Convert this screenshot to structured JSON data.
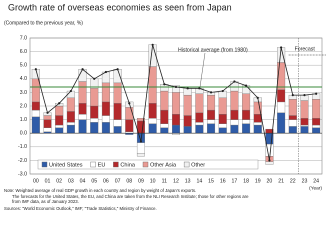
{
  "chart_data": {
    "type": "stacked-bar-line",
    "title": "Growth rate of overseas economies as seen from Japan",
    "subtitle": "(Compared to the previous year, %)",
    "x_label": "(Year)",
    "categories": [
      "00",
      "01",
      "02",
      "03",
      "04",
      "05",
      "06",
      "07",
      "08",
      "09",
      "10",
      "11",
      "12",
      "13",
      "14",
      "15",
      "16",
      "17",
      "18",
      "19",
      "20",
      "21",
      "22",
      "23",
      "24"
    ],
    "series": [
      {
        "name": "United States",
        "color": "#2f5ca8",
        "values": [
          1.2,
          0.1,
          0.4,
          0.6,
          1.0,
          0.8,
          0.8,
          0.5,
          -0.1,
          -0.7,
          0.7,
          0.4,
          0.6,
          0.5,
          0.6,
          0.7,
          0.4,
          0.6,
          0.7,
          0.6,
          -0.8,
          1.5,
          0.5,
          0.5,
          0.4
        ]
      },
      {
        "name": "EU",
        "color": "#ffffff",
        "values": [
          0.5,
          0.3,
          0.2,
          0.2,
          0.4,
          0.3,
          0.5,
          0.5,
          0.1,
          -0.8,
          0.4,
          0.3,
          -0.1,
          0.0,
          0.2,
          0.3,
          0.3,
          0.4,
          0.3,
          0.2,
          -0.9,
          0.8,
          0.5,
          0.1,
          0.2
        ]
      },
      {
        "name": "China",
        "color": "#b3292c",
        "values": [
          0.6,
          0.6,
          0.7,
          0.8,
          0.8,
          0.9,
          1.0,
          1.2,
          0.9,
          0.9,
          1.1,
          1.0,
          0.8,
          0.8,
          0.7,
          0.7,
          0.7,
          0.7,
          0.7,
          0.6,
          0.3,
          0.9,
          0.3,
          0.5,
          0.5
        ]
      },
      {
        "name": "Other Asia",
        "color": "#e99a93",
        "values": [
          1.7,
          0.3,
          0.7,
          1.0,
          1.6,
          1.3,
          1.4,
          1.5,
          0.9,
          0.2,
          2.7,
          1.4,
          1.6,
          1.5,
          1.4,
          1.1,
          1.2,
          1.4,
          1.2,
          0.9,
          -0.4,
          2.0,
          1.2,
          1.3,
          1.4
        ]
      },
      {
        "name": "Other",
        "color": "#f1f1f1",
        "values": [
          0.7,
          0.2,
          0.2,
          0.5,
          0.9,
          0.7,
          0.8,
          1.0,
          0.4,
          -0.2,
          1.6,
          0.5,
          0.5,
          0.5,
          0.4,
          0.2,
          0.5,
          0.7,
          0.6,
          0.3,
          -0.2,
          1.1,
          0.3,
          0.4,
          0.4
        ]
      }
    ],
    "line_values": [
      4.7,
      1.5,
      2.2,
      3.1,
      4.7,
      4.0,
      4.5,
      4.7,
      2.2,
      -0.6,
      6.5,
      3.6,
      3.4,
      3.3,
      3.3,
      3.0,
      3.1,
      3.8,
      3.5,
      2.6,
      -2.0,
      6.3,
      2.8,
      2.8,
      2.9
    ],
    "line_color": "#222222",
    "average": {
      "label": "Historical average (from 1980)",
      "value": 3.4,
      "color": "#3a8a3a"
    },
    "forecast_label": "Forecast",
    "ylim": [
      -3,
      7
    ],
    "yticks": [
      {
        "value": 7,
        "label": "7.0"
      },
      {
        "value": 6,
        "label": "6.0"
      },
      {
        "value": 5,
        "label": "5.0"
      },
      {
        "value": 4,
        "label": "4.0"
      },
      {
        "value": 3,
        "label": "3.0"
      },
      {
        "value": 2,
        "label": "2.0"
      },
      {
        "value": 1,
        "label": "1.0"
      },
      {
        "value": 0,
        "label": "0.0"
      },
      {
        "value": -1,
        "label": "-1.0"
      },
      {
        "value": -2,
        "label": "-2.0"
      },
      {
        "value": -3,
        "label": "-3.0"
      }
    ],
    "grid": true,
    "notes": [
      "Note: Weighted average of real GDP growth in each country and region by weight of Japan's exports.",
      "The forecasts for the United States, the EU, and China are taken from the NLI Research Institute; those for other regions are",
      "from IMF data, as of January 2023.",
      "Sources: \"World Economic Outlook,\" IMF; \"Trade Statistics,\" Ministry of Finance."
    ]
  }
}
